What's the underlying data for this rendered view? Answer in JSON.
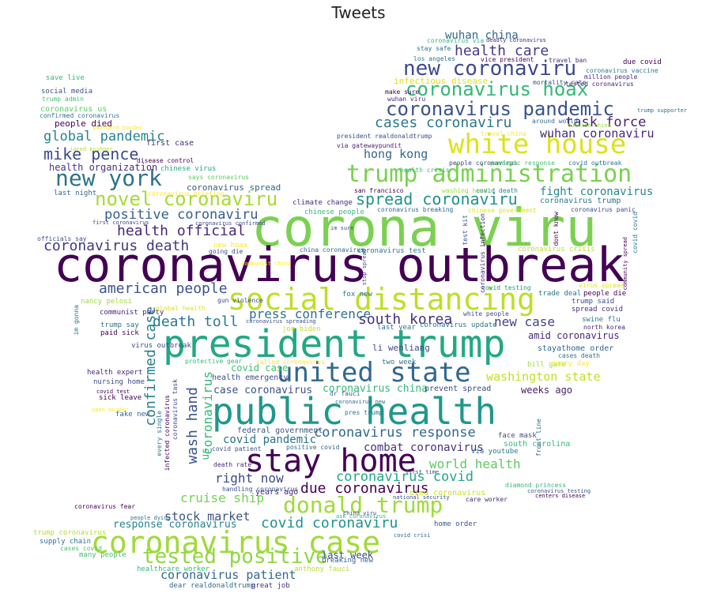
{
  "title": "Tweets",
  "words": [
    {
      "text": "corona viru",
      "color": "#7ad151"
    },
    {
      "text": "coronavirus outbreak",
      "color": "#440154"
    },
    {
      "text": "president trump",
      "color": "#22a884"
    },
    {
      "text": "public health",
      "color": "#1f988b"
    },
    {
      "text": "social distancing",
      "color": "#bddf26"
    },
    {
      "text": "stay home",
      "color": "#440154"
    },
    {
      "text": "coronavirus case",
      "color": "#a0da39"
    },
    {
      "text": "united state",
      "color": "#31688e"
    },
    {
      "text": "white house",
      "color": "#dde318"
    },
    {
      "text": "trump administration",
      "color": "#7ad151"
    },
    {
      "text": "new york",
      "color": "#2c728e"
    },
    {
      "text": "donald trump",
      "color": "#a0da39"
    },
    {
      "text": "coronavirus pandemic",
      "color": "#3b528b"
    },
    {
      "text": "novel coronaviru",
      "color": "#a5db36"
    },
    {
      "text": "tested positive",
      "color": "#90d743"
    },
    {
      "text": "new coronaviru",
      "color": "#3e4a89"
    },
    {
      "text": "coronavirus hoax",
      "color": "#35b779"
    },
    {
      "text": "spread coronaviru",
      "color": "#21918c"
    },
    {
      "text": "mike pence",
      "color": "#3e4989"
    },
    {
      "text": "health care",
      "color": "#443b84"
    },
    {
      "text": "cases coronaviru",
      "color": "#2a788e"
    },
    {
      "text": "global pandemic",
      "color": "#25858e"
    },
    {
      "text": "task force",
      "color": "#481f70"
    },
    {
      "text": "health official",
      "color": "#482878"
    },
    {
      "text": "coronavirus death",
      "color": "#453781"
    },
    {
      "text": "american people",
      "color": "#3b528b"
    },
    {
      "text": "positive coronaviru",
      "color": "#355f8d"
    },
    {
      "text": "death toll",
      "color": "#2a788e"
    },
    {
      "text": "south korea",
      "color": "#46327e"
    },
    {
      "text": "press conference",
      "color": "#2c728e"
    },
    {
      "text": "new case",
      "color": "#414487"
    },
    {
      "text": "confirmed case",
      "color": "#277f8e"
    },
    {
      "text": "wash hand",
      "color": "#3b528b"
    },
    {
      "text": "coronavirus response",
      "color": "#31688e"
    },
    {
      "text": "coronavirus covid",
      "color": "#22a884"
    },
    {
      "text": "covid coronaviru",
      "color": "#21918c"
    },
    {
      "text": "world health",
      "color": "#5ec962"
    },
    {
      "text": "due coronavirus",
      "color": "#440154"
    },
    {
      "text": "right now",
      "color": "#3e4a89"
    },
    {
      "text": "cruise ship",
      "color": "#75d054"
    },
    {
      "text": "stock market",
      "color": "#3b528b"
    },
    {
      "text": "coronavirus patient",
      "color": "#31688e"
    },
    {
      "text": "wuhan coronaviru",
      "color": "#482878"
    },
    {
      "text": "hong kong",
      "color": "#31688e"
    },
    {
      "text": "fight coronavirus",
      "color": "#238a8d"
    },
    {
      "text": "washington state",
      "color": "#c2df23"
    },
    {
      "text": "wuhan china",
      "color": "#31688e"
    },
    {
      "text": "coronavirus",
      "color": "#35b779"
    },
    {
      "text": "covid pandemic",
      "color": "#2c728e"
    },
    {
      "text": "combat coronavirus",
      "color": "#46327e"
    },
    {
      "text": "response coronavirus",
      "color": "#26828e"
    },
    {
      "text": "covid case",
      "color": "#44bf70"
    },
    {
      "text": "case coronavirus",
      "color": "#3b528b"
    },
    {
      "text": "coronavirus china",
      "color": "#35b779"
    },
    {
      "text": "health organization",
      "color": "#46327e"
    },
    {
      "text": "infectious disease",
      "color": "#dde318"
    },
    {
      "text": "last week",
      "color": "#3e4989"
    },
    {
      "text": "us",
      "color": "#35b779"
    },
    {
      "text": "weeks ago",
      "color": "#481f70"
    },
    {
      "text": "amid coronavirus",
      "color": "#482878"
    },
    {
      "text": "coronavirus spread",
      "color": "#355f8d"
    },
    {
      "text": "coronavirus trump",
      "color": "#2a788e"
    },
    {
      "text": "people died",
      "color": "#440154"
    },
    {
      "text": "first case",
      "color": "#472d7b"
    },
    {
      "text": "li wenliang",
      "color": "#3e4989"
    },
    {
      "text": "stayathome order",
      "color": "#31688e"
    },
    {
      "text": "health emergency",
      "color": "#3b528b"
    },
    {
      "text": "prevent spread",
      "color": "#3e4a89"
    },
    {
      "text": "federal government",
      "color": "#3b528b"
    },
    {
      "text": "face mask",
      "color": "#3e4989"
    },
    {
      "text": "south carolina",
      "color": "#35b779"
    },
    {
      "text": "via youtube",
      "color": "#2a788e"
    },
    {
      "text": "years ago",
      "color": "#482878"
    },
    {
      "text": "died coronavirus",
      "color": "#c8e020"
    },
    {
      "text": "home order",
      "color": "#3b528b"
    },
    {
      "text": "healthcare worker",
      "color": "#35b779"
    },
    {
      "text": "breaking new",
      "color": "#355f8d"
    },
    {
      "text": "great job",
      "color": "#46327e"
    },
    {
      "text": "supply chain",
      "color": "#2c728e"
    },
    {
      "text": "trump coronavirus",
      "color": "#b5de2b"
    },
    {
      "text": "many people",
      "color": "#44bf70"
    },
    {
      "text": "dear realdonaldtrump",
      "color": "#31688e"
    },
    {
      "text": "anthony fauci",
      "color": "#b5de2b"
    },
    {
      "text": "nursing home",
      "color": "#3e4a89"
    },
    {
      "text": "health expert",
      "color": "#482878"
    },
    {
      "text": "sick leave",
      "color": "#440154"
    },
    {
      "text": "fake new",
      "color": "#31688e"
    },
    {
      "text": "virus outbreak",
      "color": "#3e4989"
    },
    {
      "text": "trump say",
      "color": "#2c728e"
    },
    {
      "text": "paid sick",
      "color": "#440154"
    },
    {
      "text": "communist party",
      "color": "#482878"
    },
    {
      "text": "nancy pelosi",
      "color": "#a0da39"
    },
    {
      "text": "global health",
      "color": "#dde318"
    },
    {
      "text": "white people",
      "color": "#3b528b"
    },
    {
      "text": "coronavirus update",
      "color": "#2c728e"
    },
    {
      "text": "last year",
      "color": "#2a788e"
    },
    {
      "text": "joe biden",
      "color": "#c2df23"
    },
    {
      "text": "two week",
      "color": "#2a788e"
    },
    {
      "text": "fox new",
      "color": "#2c728e"
    },
    {
      "text": "trade deal",
      "color": "#2c728e"
    },
    {
      "text": "swine flu",
      "color": "#2a788e"
    },
    {
      "text": "bill gate",
      "color": "#a0da39"
    },
    {
      "text": "every day",
      "color": "#fde725"
    },
    {
      "text": "cases death",
      "color": "#2c728e"
    },
    {
      "text": "people die",
      "color": "#440154"
    },
    {
      "text": "trump said",
      "color": "#3e4989"
    },
    {
      "text": "spread covid",
      "color": "#472d7b"
    },
    {
      "text": "north korea",
      "color": "#482878"
    },
    {
      "text": "virus spread",
      "color": "#dde318"
    },
    {
      "text": "covid testing",
      "color": "#1f988b"
    },
    {
      "text": "chinese people",
      "color": "#35b779"
    },
    {
      "text": "coronavirus breaking",
      "color": "#31688e"
    },
    {
      "text": "chinese government",
      "color": "#dde318"
    },
    {
      "text": "coronavirus panic",
      "color": "#3e4a89"
    },
    {
      "text": "coronavirus test",
      "color": "#2a788e"
    },
    {
      "text": "coronavirus crisis",
      "color": "#bddf26"
    },
    {
      "text": "china coronavirus",
      "color": "#31688e"
    },
    {
      "text": "new hoax",
      "color": "#fde725"
    },
    {
      "text": "going die",
      "color": "#3b528b"
    },
    {
      "text": "climate change",
      "color": "#482878"
    },
    {
      "text": "san francisco",
      "color": "#440154"
    },
    {
      "text": "washing hand",
      "color": "#a0da39"
    },
    {
      "text": "covid death",
      "color": "#26828e"
    },
    {
      "text": "says coronavirus",
      "color": "#5ec962"
    },
    {
      "text": "chinese virus",
      "color": "#22a884"
    },
    {
      "text": "disease control",
      "color": "#440154"
    },
    {
      "text": "last night",
      "color": "#31688e"
    },
    {
      "text": "coronavirus briefing",
      "color": "#fde725"
    },
    {
      "text": "jared kushner",
      "color": "#b5de2b"
    },
    {
      "text": "people coronavirus",
      "color": "#3e4989"
    },
    {
      "text": "pandemic response",
      "color": "#44bf70"
    },
    {
      "text": "covid outbreak",
      "color": "#2a788e"
    },
    {
      "text": "health crisis",
      "color": "#35b779"
    },
    {
      "text": "via gatewaypundit",
      "color": "#481f70"
    },
    {
      "text": "president realdonaldtrump",
      "color": "#3e4989"
    },
    {
      "text": "travel china",
      "color": "#fde725"
    },
    {
      "text": "around world",
      "color": "#2c728e"
    },
    {
      "text": "outside china",
      "color": "#90d743"
    },
    {
      "text": "trump supporter",
      "color": "#2c728e"
    },
    {
      "text": "make sure",
      "color": "#440154"
    },
    {
      "text": "wuhan viru",
      "color": "#482878"
    },
    {
      "text": "mortality rate",
      "color": "#3b528b"
    },
    {
      "text": "tested coronavirus",
      "color": "#481f70"
    },
    {
      "text": "million people",
      "color": "#482878"
    },
    {
      "text": "coronavirus vaccine",
      "color": "#2a788e"
    },
    {
      "text": "due covid",
      "color": "#440154"
    },
    {
      "text": "travel ban",
      "color": "#482878"
    },
    {
      "text": "vice president",
      "color": "#440154"
    },
    {
      "text": "los angeles",
      "color": "#2a788e"
    },
    {
      "text": "stay safe",
      "color": "#2c728e"
    },
    {
      "text": "coronavirus via",
      "color": "#35b779"
    },
    {
      "text": "deadly coronavirus",
      "color": "#482878"
    },
    {
      "text": "save live",
      "color": "#35b779"
    },
    {
      "text": "social media",
      "color": "#3b528b"
    },
    {
      "text": "trump admin",
      "color": "#44bf70"
    },
    {
      "text": "coronavirus us",
      "color": "#5ec962"
    },
    {
      "text": "confirmed coronavirus",
      "color": "#2a788e"
    },
    {
      "text": "southern border",
      "color": "#fde725"
    },
    {
      "text": "officials say",
      "color": "#3b528b"
    },
    {
      "text": "first coronavirus",
      "color": "#3e4989"
    },
    {
      "text": "coronavirus confirmed",
      "color": "#3e4989"
    },
    {
      "text": "im sure",
      "color": "#3b528b"
    },
    {
      "text": "test kit",
      "color": "#3b528b"
    },
    {
      "text": "dont know",
      "color": "#440154"
    },
    {
      "text": "covid covid",
      "color": "#2a788e"
    },
    {
      "text": "community spread",
      "color": "#440154"
    },
    {
      "text": "coronavirus infection",
      "color": "#482878"
    },
    {
      "text": "stop spread",
      "color": "#3e4989"
    },
    {
      "text": "communist china",
      "color": "#fde725"
    },
    {
      "text": "gun violence",
      "color": "#3e4989"
    },
    {
      "text": "coronavirus spreading",
      "color": "#3b528b"
    },
    {
      "text": "im gonna",
      "color": "#2a788e"
    },
    {
      "text": "called coronavirus",
      "color": "#fde725"
    },
    {
      "text": "protective gear",
      "color": "#35b779"
    },
    {
      "text": "coronavirus task",
      "color": "#3e4989"
    },
    {
      "text": "infected coronavirus",
      "color": "#440154"
    },
    {
      "text": "every single",
      "color": "#2c728e"
    },
    {
      "text": "dr fauci",
      "color": "#31688e"
    },
    {
      "text": "coronavirus new",
      "color": "#31688e"
    },
    {
      "text": "covid test",
      "color": "#440154"
    },
    {
      "text": "open border",
      "color": "#fde725"
    },
    {
      "text": "covid patient",
      "color": "#3b528b"
    },
    {
      "text": "positive covid",
      "color": "#31688e"
    },
    {
      "text": "pres trump",
      "color": "#2a788e"
    },
    {
      "text": "death rate",
      "color": "#482878"
    },
    {
      "text": "first time",
      "color": "#3e4989"
    },
    {
      "text": "front line",
      "color": "#31688e"
    },
    {
      "text": "national security",
      "color": "#3b528b"
    },
    {
      "text": "diamond princess",
      "color": "#35b779"
    },
    {
      "text": "care worker",
      "color": "#482878"
    },
    {
      "text": "handling coronavirus",
      "color": "#3b528b"
    },
    {
      "text": "coronavirus fear",
      "color": "#440154"
    },
    {
      "text": "people dying",
      "color": "#2a788e"
    },
    {
      "text": "cases covid",
      "color": "#44bf70"
    },
    {
      "text": "covid crisi",
      "color": "#31688e"
    },
    {
      "text": "ask coronavirus",
      "color": "#35b779"
    },
    {
      "text": "china viru",
      "color": "#3b528b"
    },
    {
      "text": "centers disease",
      "color": "#440154"
    },
    {
      "text": "coronavirus testing",
      "color": "#3b528b"
    }
  ]
}
